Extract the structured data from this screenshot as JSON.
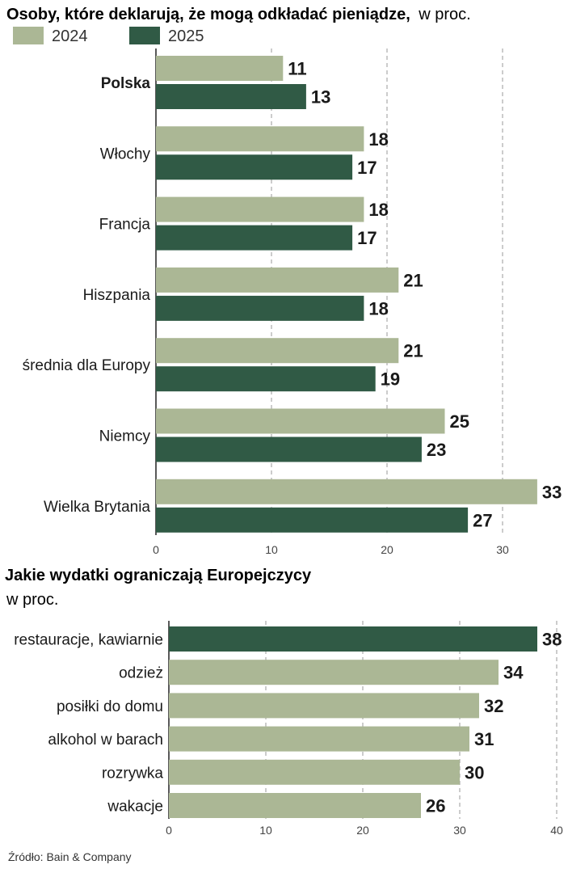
{
  "colors": {
    "c2024": "#abb795",
    "c2025": "#305a45",
    "text": "#1a1a1a"
  },
  "chart_data": [
    {
      "type": "bar",
      "orientation": "horizontal",
      "title": "Osoby, które deklarują, że mogą odkładać pieniądze,",
      "subtitle": "w proc.",
      "categories": [
        "Polska",
        "Włochy",
        "Francja",
        "Hiszpania",
        "średnia dla Europy",
        "Niemcy",
        "Wielka Brytania"
      ],
      "highlight_category": "Polska",
      "series": [
        {
          "name": "2024",
          "values": [
            11,
            18,
            18,
            21,
            21,
            25,
            33
          ]
        },
        {
          "name": "2025",
          "values": [
            13,
            17,
            17,
            18,
            19,
            23,
            27
          ]
        }
      ],
      "xlim": [
        0,
        33
      ],
      "xticks": [
        0,
        10,
        20,
        30
      ],
      "grid": true,
      "legend": "top-left"
    },
    {
      "type": "bar",
      "orientation": "horizontal",
      "title": "Jakie wydatki ograniczają Europejczycy",
      "subtitle": "w proc.",
      "categories": [
        "restauracje, kawiarnie",
        "odzież",
        "posiłki do domu",
        "alkohol w barach",
        "rozrywka",
        "wakacje"
      ],
      "values": [
        38,
        34,
        32,
        31,
        30,
        26
      ],
      "highlight_index": 0,
      "xlim": [
        0,
        40
      ],
      "xticks": [
        0,
        10,
        20,
        30,
        40
      ],
      "grid": true
    }
  ],
  "source": "Źródło: Bain & Company"
}
